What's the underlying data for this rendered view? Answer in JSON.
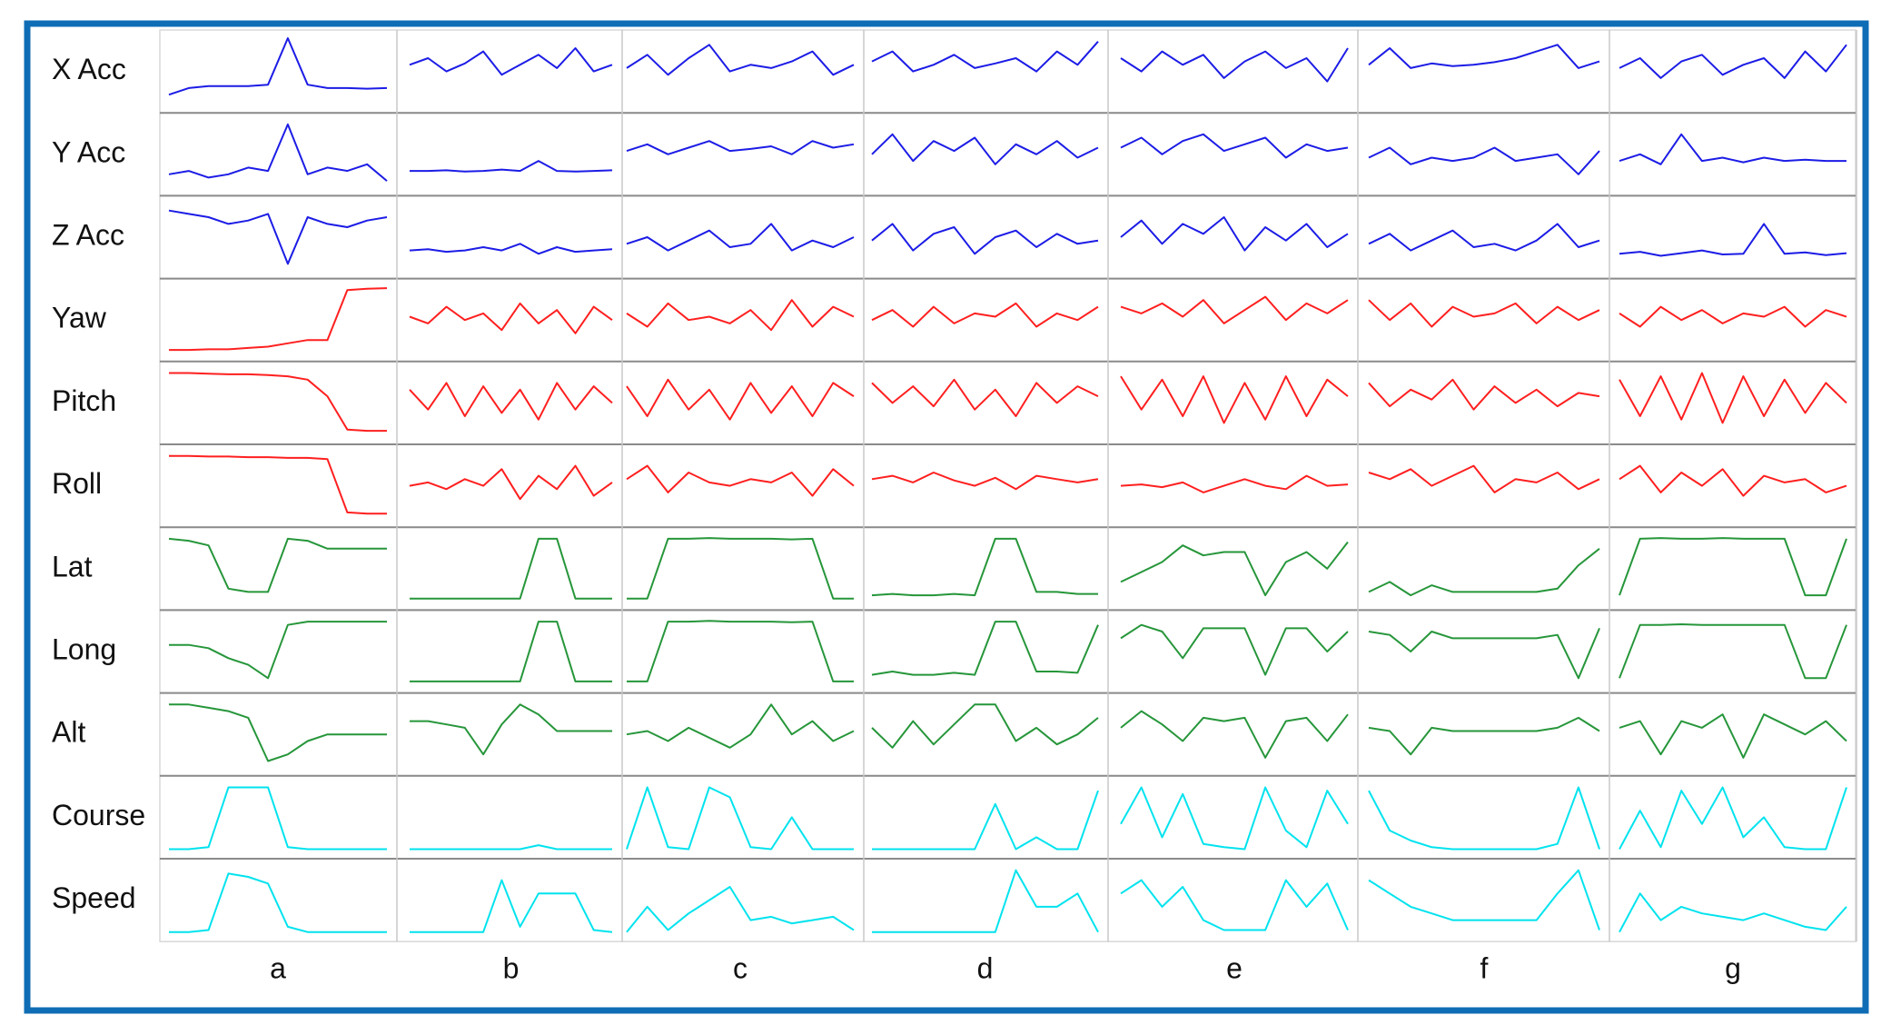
{
  "chart_data": {
    "type": "line",
    "row_labels": [
      "X Acc",
      "Y Acc",
      "Z Acc",
      "Yaw",
      "Pitch",
      "Roll",
      "Lat",
      "Long",
      "Alt",
      "Course",
      "Speed"
    ],
    "col_labels": [
      "a",
      "b",
      "c",
      "d",
      "e",
      "f",
      "g"
    ],
    "row_colors": [
      "#1c1ce6",
      "#1c1ce6",
      "#1c1ce6",
      "#ff1f1f",
      "#ff1f1f",
      "#ff1f1f",
      "#26963a",
      "#26963a",
      "#26963a",
      "#00e3ee",
      "#00e3ee"
    ],
    "ylim": [
      0,
      100
    ],
    "panels": [
      [
        [
          15,
          25,
          28,
          28,
          28,
          30,
          100,
          30,
          25,
          25,
          24,
          25
        ],
        [
          60,
          70,
          50,
          62,
          80,
          45,
          60,
          75,
          55,
          85,
          50,
          60
        ],
        [
          55,
          75,
          45,
          70,
          90,
          50,
          60,
          55,
          65,
          80,
          45,
          60
        ],
        [
          65,
          80,
          50,
          60,
          75,
          55,
          62,
          70,
          50,
          80,
          60,
          95
        ],
        [
          70,
          50,
          80,
          60,
          75,
          40,
          65,
          80,
          55,
          70,
          35,
          85
        ],
        [
          60,
          85,
          55,
          62,
          58,
          60,
          64,
          70,
          80,
          90,
          55,
          65
        ],
        [
          55,
          70,
          40,
          65,
          75,
          45,
          60,
          70,
          40,
          80,
          50,
          90
        ]
      ],
      [
        [
          20,
          25,
          15,
          20,
          30,
          25,
          95,
          20,
          30,
          25,
          35,
          10
        ],
        [
          25,
          25,
          26,
          24,
          25,
          27,
          25,
          40,
          25,
          24,
          25,
          26
        ],
        [
          55,
          65,
          50,
          60,
          70,
          55,
          58,
          62,
          50,
          70,
          60,
          65
        ],
        [
          50,
          80,
          40,
          70,
          55,
          75,
          35,
          65,
          50,
          70,
          45,
          60
        ],
        [
          60,
          75,
          50,
          70,
          80,
          55,
          65,
          75,
          45,
          65,
          55,
          60
        ],
        [
          45,
          60,
          35,
          45,
          40,
          45,
          60,
          40,
          45,
          50,
          20,
          55
        ],
        [
          40,
          50,
          35,
          80,
          40,
          45,
          38,
          45,
          40,
          42,
          40,
          40
        ]
      ],
      [
        [
          90,
          85,
          80,
          70,
          75,
          85,
          10,
          80,
          70,
          65,
          75,
          80
        ],
        [
          30,
          32,
          28,
          30,
          35,
          30,
          40,
          25,
          35,
          28,
          30,
          32
        ],
        [
          40,
          50,
          30,
          45,
          60,
          35,
          40,
          70,
          30,
          45,
          35,
          50
        ],
        [
          45,
          70,
          30,
          55,
          65,
          25,
          50,
          60,
          35,
          55,
          40,
          45
        ],
        [
          50,
          75,
          40,
          70,
          55,
          80,
          30,
          65,
          45,
          70,
          35,
          55
        ],
        [
          40,
          55,
          30,
          45,
          60,
          35,
          40,
          30,
          45,
          70,
          35,
          45
        ],
        [
          25,
          28,
          22,
          26,
          30,
          24,
          25,
          70,
          25,
          27,
          23,
          26
        ]
      ],
      [
        [
          5,
          5,
          6,
          6,
          8,
          10,
          15,
          20,
          20,
          95,
          97,
          98
        ],
        [
          55,
          45,
          70,
          50,
          60,
          35,
          75,
          45,
          65,
          30,
          70,
          50
        ],
        [
          60,
          40,
          75,
          50,
          55,
          45,
          65,
          35,
          80,
          40,
          70,
          55
        ],
        [
          50,
          65,
          40,
          70,
          45,
          60,
          55,
          75,
          40,
          60,
          50,
          70
        ],
        [
          70,
          60,
          75,
          55,
          80,
          45,
          65,
          85,
          50,
          75,
          60,
          80
        ],
        [
          80,
          50,
          75,
          40,
          70,
          55,
          60,
          75,
          45,
          70,
          50,
          65
        ],
        [
          60,
          40,
          70,
          50,
          65,
          45,
          60,
          55,
          70,
          40,
          65,
          55
        ]
      ],
      [
        [
          95,
          95,
          94,
          93,
          93,
          92,
          90,
          85,
          60,
          10,
          8,
          8
        ],
        [
          70,
          40,
          80,
          30,
          75,
          35,
          70,
          25,
          80,
          40,
          75,
          50
        ],
        [
          75,
          30,
          85,
          40,
          70,
          25,
          80,
          35,
          75,
          30,
          80,
          60
        ],
        [
          80,
          50,
          75,
          45,
          85,
          40,
          70,
          30,
          80,
          50,
          75,
          60
        ],
        [
          90,
          40,
          85,
          30,
          90,
          20,
          80,
          25,
          90,
          30,
          85,
          60
        ],
        [
          80,
          45,
          70,
          55,
          85,
          40,
          75,
          50,
          70,
          45,
          65,
          60
        ],
        [
          85,
          30,
          90,
          25,
          95,
          20,
          90,
          30,
          85,
          35,
          80,
          50
        ]
      ],
      [
        [
          95,
          95,
          94,
          94,
          93,
          93,
          92,
          92,
          90,
          10,
          8,
          8
        ],
        [
          50,
          55,
          45,
          60,
          50,
          75,
          30,
          65,
          45,
          80,
          35,
          55
        ],
        [
          60,
          80,
          40,
          70,
          55,
          50,
          60,
          55,
          70,
          35,
          75,
          50
        ],
        [
          60,
          65,
          55,
          70,
          58,
          50,
          62,
          45,
          65,
          60,
          55,
          60
        ],
        [
          50,
          52,
          48,
          55,
          40,
          50,
          60,
          50,
          45,
          65,
          50,
          52
        ],
        [
          70,
          60,
          75,
          50,
          65,
          80,
          40,
          60,
          55,
          70,
          45,
          60
        ],
        [
          60,
          80,
          40,
          70,
          50,
          75,
          35,
          65,
          55,
          60,
          40,
          50
        ]
      ],
      [
        [
          95,
          92,
          85,
          20,
          15,
          15,
          95,
          92,
          80,
          80,
          80,
          80
        ],
        [
          5,
          5,
          5,
          5,
          5,
          5,
          5,
          95,
          95,
          5,
          5,
          5
        ],
        [
          5,
          5,
          95,
          95,
          96,
          95,
          95,
          95,
          94,
          95,
          5,
          5
        ],
        [
          10,
          12,
          10,
          10,
          12,
          10,
          95,
          95,
          15,
          15,
          12,
          12
        ],
        [
          30,
          45,
          60,
          85,
          70,
          75,
          75,
          10,
          60,
          75,
          50,
          90
        ],
        [
          15,
          30,
          10,
          25,
          15,
          15,
          15,
          15,
          15,
          20,
          55,
          80
        ],
        [
          10,
          95,
          96,
          95,
          95,
          96,
          95,
          95,
          95,
          10,
          10,
          95
        ]
      ],
      [
        [
          60,
          60,
          55,
          40,
          30,
          10,
          90,
          95,
          95,
          95,
          95,
          95
        ],
        [
          5,
          5,
          5,
          5,
          5,
          5,
          5,
          95,
          95,
          5,
          5,
          5
        ],
        [
          5,
          5,
          95,
          95,
          96,
          95,
          95,
          95,
          94,
          95,
          5,
          5
        ],
        [
          15,
          20,
          15,
          15,
          18,
          15,
          95,
          95,
          20,
          20,
          18,
          90
        ],
        [
          70,
          90,
          80,
          40,
          85,
          85,
          85,
          15,
          85,
          85,
          50,
          80
        ],
        [
          80,
          75,
          50,
          80,
          70,
          70,
          70,
          70,
          70,
          75,
          10,
          85
        ],
        [
          10,
          90,
          90,
          91,
          90,
          90,
          90,
          90,
          90,
          10,
          10,
          90
        ]
      ],
      [
        [
          95,
          95,
          90,
          85,
          75,
          10,
          20,
          40,
          50,
          50,
          50,
          50
        ],
        [
          70,
          70,
          65,
          60,
          20,
          65,
          95,
          80,
          55,
          55,
          55,
          55
        ],
        [
          50,
          55,
          40,
          60,
          45,
          30,
          50,
          95,
          50,
          70,
          40,
          55
        ],
        [
          60,
          30,
          70,
          35,
          65,
          95,
          95,
          40,
          60,
          35,
          50,
          75
        ],
        [
          60,
          85,
          65,
          40,
          75,
          70,
          75,
          15,
          70,
          75,
          40,
          80
        ],
        [
          60,
          55,
          20,
          60,
          55,
          55,
          55,
          55,
          55,
          60,
          75,
          55
        ],
        [
          60,
          70,
          20,
          70,
          60,
          80,
          15,
          80,
          65,
          50,
          70,
          40
        ]
      ],
      [
        [
          2,
          2,
          5,
          95,
          95,
          95,
          5,
          2,
          2,
          2,
          2,
          2
        ],
        [
          2,
          2,
          2,
          2,
          2,
          2,
          2,
          8,
          2,
          2,
          2,
          2
        ],
        [
          2,
          95,
          5,
          2,
          95,
          80,
          5,
          2,
          50,
          2,
          2,
          2
        ],
        [
          2,
          2,
          2,
          2,
          2,
          2,
          70,
          2,
          20,
          2,
          2,
          90
        ],
        [
          40,
          95,
          20,
          85,
          10,
          5,
          2,
          95,
          30,
          5,
          90,
          40
        ],
        [
          90,
          30,
          15,
          5,
          2,
          2,
          2,
          2,
          2,
          10,
          95,
          2
        ],
        [
          2,
          60,
          5,
          90,
          40,
          95,
          20,
          50,
          5,
          2,
          2,
          95
        ]
      ],
      [
        [
          2,
          2,
          5,
          90,
          85,
          75,
          10,
          2,
          2,
          2,
          2,
          2
        ],
        [
          2,
          2,
          2,
          2,
          2,
          80,
          10,
          60,
          60,
          60,
          5,
          2
        ],
        [
          2,
          40,
          5,
          30,
          50,
          70,
          20,
          25,
          15,
          20,
          25,
          5
        ],
        [
          2,
          2,
          2,
          2,
          2,
          2,
          2,
          95,
          40,
          40,
          60,
          2
        ],
        [
          60,
          80,
          40,
          70,
          20,
          5,
          5,
          5,
          80,
          40,
          75,
          5
        ],
        [
          80,
          60,
          40,
          30,
          20,
          20,
          20,
          20,
          20,
          60,
          95,
          5
        ],
        [
          2,
          60,
          20,
          40,
          30,
          25,
          20,
          30,
          20,
          10,
          5,
          40
        ]
      ]
    ]
  }
}
